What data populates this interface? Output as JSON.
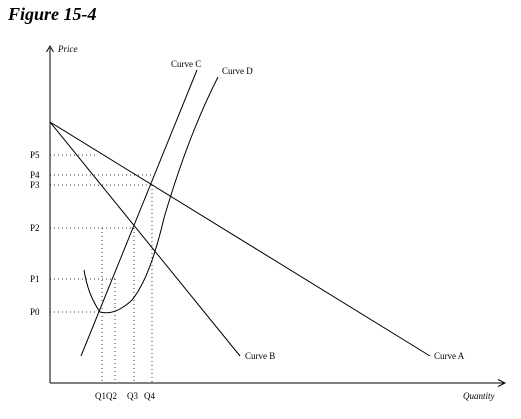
{
  "figure": {
    "title": "Figure 15-4"
  },
  "axes": {
    "y_label": "Price",
    "x_label": "Quantity"
  },
  "curves": {
    "a": "Curve A",
    "b": "Curve B",
    "c": "Curve C",
    "d": "Curve D"
  },
  "price_ticks": [
    "P5",
    "P4",
    "P3",
    "P2",
    "P1",
    "P0"
  ],
  "quantity_ticks": [
    "Q1Q2",
    "Q3",
    "Q4"
  ]
}
